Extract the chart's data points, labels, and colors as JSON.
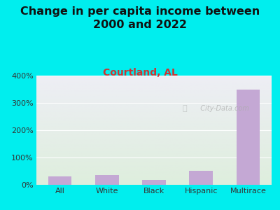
{
  "title": "Change in per capita income between\n2000 and 2022",
  "subtitle": "Courtland, AL",
  "categories": [
    "All",
    "White",
    "Black",
    "Hispanic",
    "Multirace"
  ],
  "values": [
    30,
    35,
    17,
    52,
    348
  ],
  "bar_color": "#c4a8d4",
  "title_fontsize": 11.5,
  "subtitle_fontsize": 10,
  "subtitle_color": "#cc3333",
  "background_color": "#00eeee",
  "plot_bg_top": "#eeeef5",
  "plot_bg_bottom": "#deeedd",
  "ylim": [
    0,
    400
  ],
  "yticks": [
    0,
    100,
    200,
    300,
    400
  ],
  "ytick_labels": [
    "0%",
    "100%",
    "200%",
    "300%",
    "400%"
  ],
  "watermark": "  City-Data.com"
}
